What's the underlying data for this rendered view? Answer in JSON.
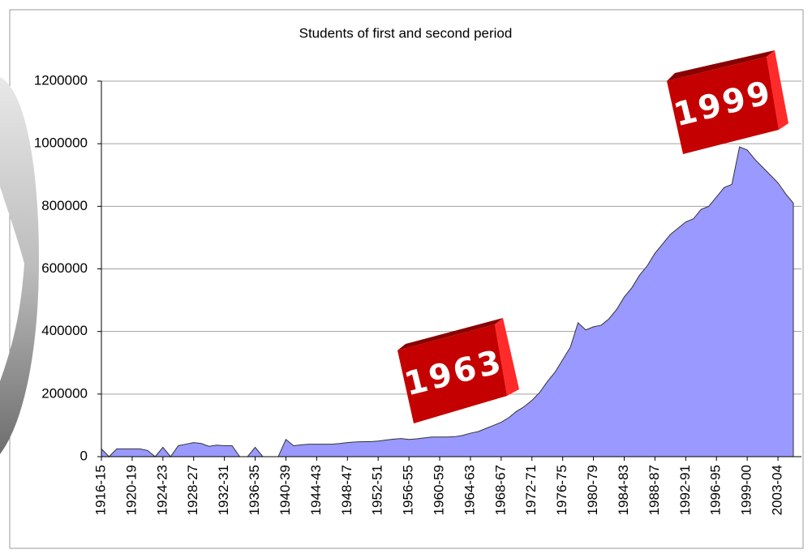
{
  "chart_data": {
    "type": "area",
    "title": "Students of first and second period",
    "categories": [
      "1916-15",
      null,
      null,
      null,
      "1920-19",
      null,
      null,
      null,
      "1924-23",
      null,
      null,
      null,
      "1928-27",
      null,
      null,
      null,
      "1932-31",
      null,
      null,
      null,
      "1936-35",
      null,
      null,
      null,
      "1940-39",
      null,
      null,
      null,
      "1944-43",
      null,
      null,
      null,
      "1948-47",
      null,
      null,
      null,
      "1952-51",
      null,
      null,
      null,
      "1956-55",
      null,
      null,
      null,
      "1960-59",
      null,
      null,
      null,
      "1964-63",
      null,
      null,
      null,
      "1968-67",
      null,
      null,
      null,
      "1972-71",
      null,
      null,
      null,
      "1976-75",
      null,
      null,
      null,
      "1980-79",
      null,
      null,
      null,
      "1984-83",
      null,
      null,
      null,
      "1988-87",
      null,
      null,
      null,
      "1992-91",
      null,
      null,
      null,
      "1996-95",
      null,
      null,
      null,
      "1999-00",
      null,
      null,
      null,
      "2003-04",
      null,
      null
    ],
    "values": [
      25000,
      0,
      25000,
      25000,
      25000,
      25000,
      20000,
      0,
      30000,
      0,
      35000,
      40000,
      45000,
      42000,
      33000,
      37000,
      35000,
      35000,
      0,
      0,
      30000,
      0,
      0,
      0,
      55000,
      35000,
      38000,
      40000,
      40000,
      40000,
      40000,
      42000,
      45000,
      47000,
      48000,
      48000,
      50000,
      53000,
      56000,
      58000,
      55000,
      57000,
      60000,
      63000,
      63000,
      63000,
      64000,
      68000,
      75000,
      80000,
      90000,
      100000,
      110000,
      125000,
      145000,
      160000,
      180000,
      205000,
      240000,
      270000,
      310000,
      350000,
      428000,
      405000,
      415000,
      420000,
      440000,
      470000,
      510000,
      540000,
      580000,
      610000,
      650000,
      680000,
      710000,
      730000,
      750000,
      760000,
      790000,
      800000,
      830000,
      860000,
      870000,
      990000,
      980000,
      950000,
      925000,
      900000,
      875000,
      840000,
      810000
    ],
    "color": "#9999ff",
    "ylim": [
      0,
      1200000
    ],
    "yticks": [
      0,
      200000,
      400000,
      600000,
      800000,
      1000000,
      1200000
    ],
    "grid": true,
    "annotations": [
      {
        "text": "1963"
      },
      {
        "text": "1999"
      }
    ]
  }
}
